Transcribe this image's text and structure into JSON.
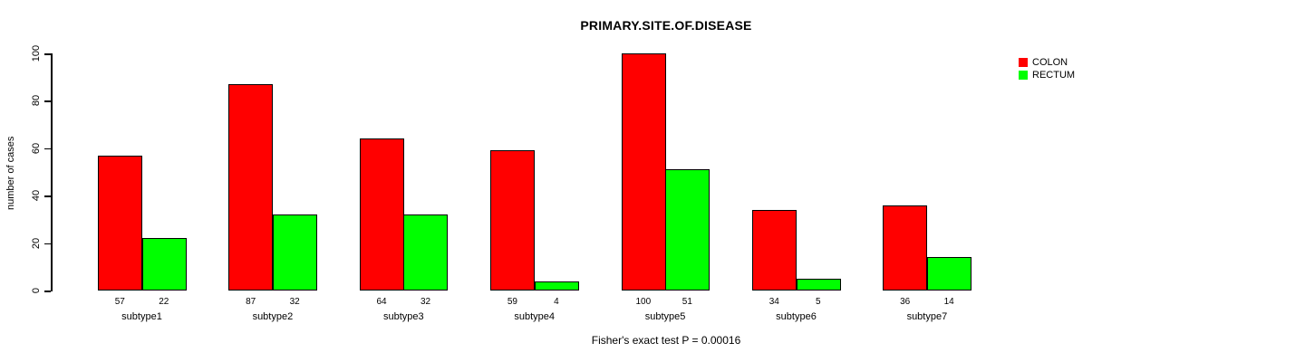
{
  "chart_data": {
    "type": "bar",
    "grouped": true,
    "title": "PRIMARY.SITE.OF.DISEASE",
    "ylabel": "number of cases",
    "xlabel": "",
    "ylim": [
      0,
      100
    ],
    "yticks": [
      0,
      20,
      40,
      60,
      80,
      100
    ],
    "grid": false,
    "legend_position": "top-right",
    "bar_value_labels_shown": true,
    "categories": [
      "subtype1",
      "subtype2",
      "subtype3",
      "subtype4",
      "subtype5",
      "subtype6",
      "subtype7"
    ],
    "series": [
      {
        "name": "COLON",
        "color": "#ff0000",
        "values": [
          57,
          87,
          64,
          59,
          100,
          34,
          36
        ]
      },
      {
        "name": "RECTUM",
        "color": "#00ff00",
        "values": [
          22,
          32,
          32,
          4,
          51,
          5,
          14
        ]
      }
    ],
    "annotation": "Fisher's exact test P = 0.00016"
  }
}
